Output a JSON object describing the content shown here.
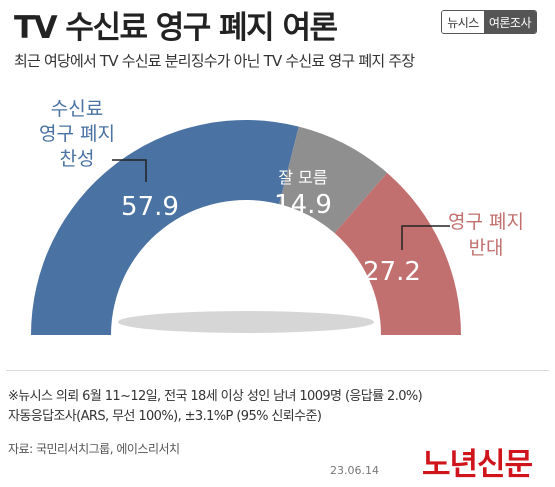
{
  "title": "TV 수신료 영구 폐지 여론",
  "badge": {
    "left": "뉴시스",
    "right": "여론조사"
  },
  "subtitle": "최근 여당에서 TV 수신료 분리징수가 아닌 TV 수신료 영구 폐지 주장",
  "chart_data": {
    "type": "pie",
    "subtype": "semicircle-donut",
    "categories": [
      "영구 폐지 찬성",
      "잘 모름",
      "영구 폐지 반대"
    ],
    "values": [
      57.9,
      14.9,
      27.2
    ],
    "colors": [
      "#4a72a3",
      "#8f8f8f",
      "#c2706f"
    ],
    "label_colors": [
      "#4a72a3",
      "#555555",
      "#c2706f"
    ],
    "labels_outside": [
      [
        "수신료",
        "영구 폐지",
        "찬성"
      ],
      [
        "잘 모름"
      ],
      [
        "영구 폐지",
        "반대"
      ]
    ]
  },
  "notes": [
    "※뉴시스 의뢰 6월 11~12일, 전국 18세 이상 성인 남녀 1009명 (응답률 2.0%)",
    "자동응답조사(ARS, 무선 100%), ±3.1%P (95% 신뢰수준)"
  ],
  "source": "자료: 국민리서치그룹, 에이스리서치",
  "date": "23.06.14",
  "logo": "노년신문"
}
